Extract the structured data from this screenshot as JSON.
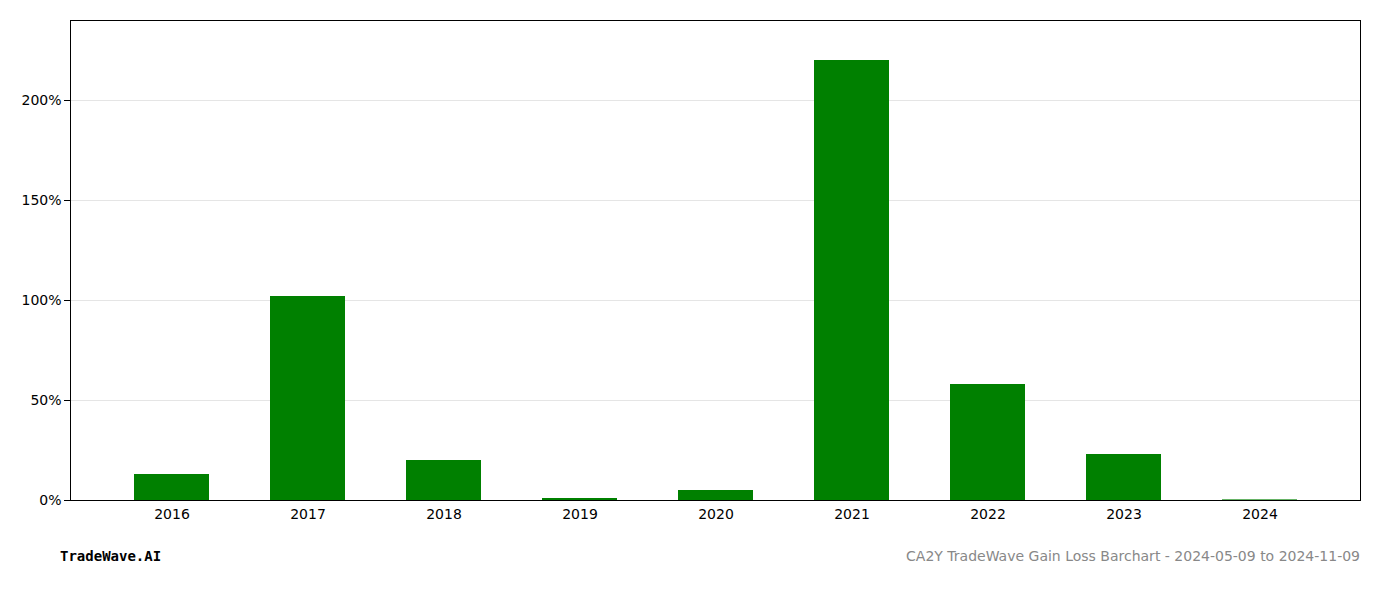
{
  "chart_data": {
    "type": "bar",
    "categories": [
      "2016",
      "2017",
      "2018",
      "2019",
      "2020",
      "2021",
      "2022",
      "2023",
      "2024"
    ],
    "values": [
      13.0,
      102.0,
      20.0,
      1.0,
      5.0,
      220.0,
      58.0,
      23.0,
      0.3
    ],
    "color": "#008000",
    "ylim": [
      0,
      240
    ],
    "yticks": [
      {
        "value": 0,
        "label": "0%"
      },
      {
        "value": 50,
        "label": "50%"
      },
      {
        "value": 100,
        "label": "100%"
      },
      {
        "value": 150,
        "label": "150%"
      },
      {
        "value": 200,
        "label": "200%"
      }
    ],
    "grid": true,
    "annotations": [
      "TradeWave.AI",
      "CA2Y TradeWave Gain Loss Barchart - 2024-05-09 to 2024-11-09"
    ]
  }
}
